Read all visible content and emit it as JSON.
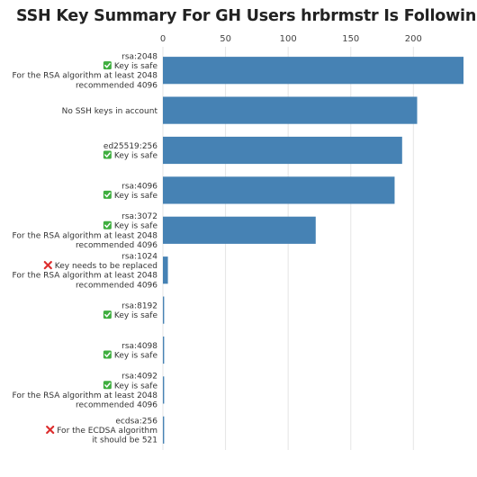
{
  "chart_data": {
    "type": "bar",
    "orientation": "horizontal",
    "title": "SSH Key Summary For GH Users hrbrmstr Is Following",
    "xlabel": "",
    "ylabel": "",
    "xlim": [
      0,
      240
    ],
    "x_ticks": [
      0,
      50,
      100,
      150,
      200
    ],
    "x_axis_position": "top",
    "grid": true,
    "bar_color": "#4682b4",
    "categories": [
      {
        "lines": [
          {
            "text": "rsa:2048"
          },
          {
            "icon": "check-icon",
            "text": "Key is safe"
          },
          {
            "text": "For the RSA algorithm at least 2048"
          },
          {
            "text": "recommended 4096"
          }
        ]
      },
      {
        "lines": [
          {
            "text": "No SSH keys in account"
          }
        ]
      },
      {
        "lines": [
          {
            "text": "ed25519:256"
          },
          {
            "icon": "check-icon",
            "text": "Key is safe"
          }
        ]
      },
      {
        "lines": [
          {
            "text": "rsa:4096"
          },
          {
            "icon": "check-icon",
            "text": "Key is safe"
          }
        ]
      },
      {
        "lines": [
          {
            "text": "rsa:3072"
          },
          {
            "icon": "check-icon",
            "text": "Key is safe"
          },
          {
            "text": "For the RSA algorithm at least 2048"
          },
          {
            "text": "recommended 4096"
          }
        ]
      },
      {
        "lines": [
          {
            "text": "rsa:1024"
          },
          {
            "icon": "cross-icon",
            "text": "Key needs to be replaced"
          },
          {
            "text": "For the RSA algorithm at least 2048"
          },
          {
            "text": "recommended 4096"
          }
        ]
      },
      {
        "lines": [
          {
            "text": "rsa:8192"
          },
          {
            "icon": "check-icon",
            "text": "Key is safe"
          }
        ]
      },
      {
        "lines": [
          {
            "text": "rsa:4098"
          },
          {
            "icon": "check-icon",
            "text": "Key is safe"
          }
        ]
      },
      {
        "lines": [
          {
            "text": "rsa:4092"
          },
          {
            "icon": "check-icon",
            "text": "Key is safe"
          },
          {
            "text": "For the RSA algorithm at least 2048"
          },
          {
            "text": "recommended 4096"
          }
        ]
      },
      {
        "lines": [
          {
            "text": "ecdsa:256"
          },
          {
            "icon": "cross-icon",
            "text": "For the ECDSA algorithm"
          },
          {
            "text": "it should be 521"
          }
        ]
      }
    ],
    "values": [
      240,
      203,
      191,
      185,
      122,
      4,
      1,
      1,
      1,
      1
    ]
  }
}
